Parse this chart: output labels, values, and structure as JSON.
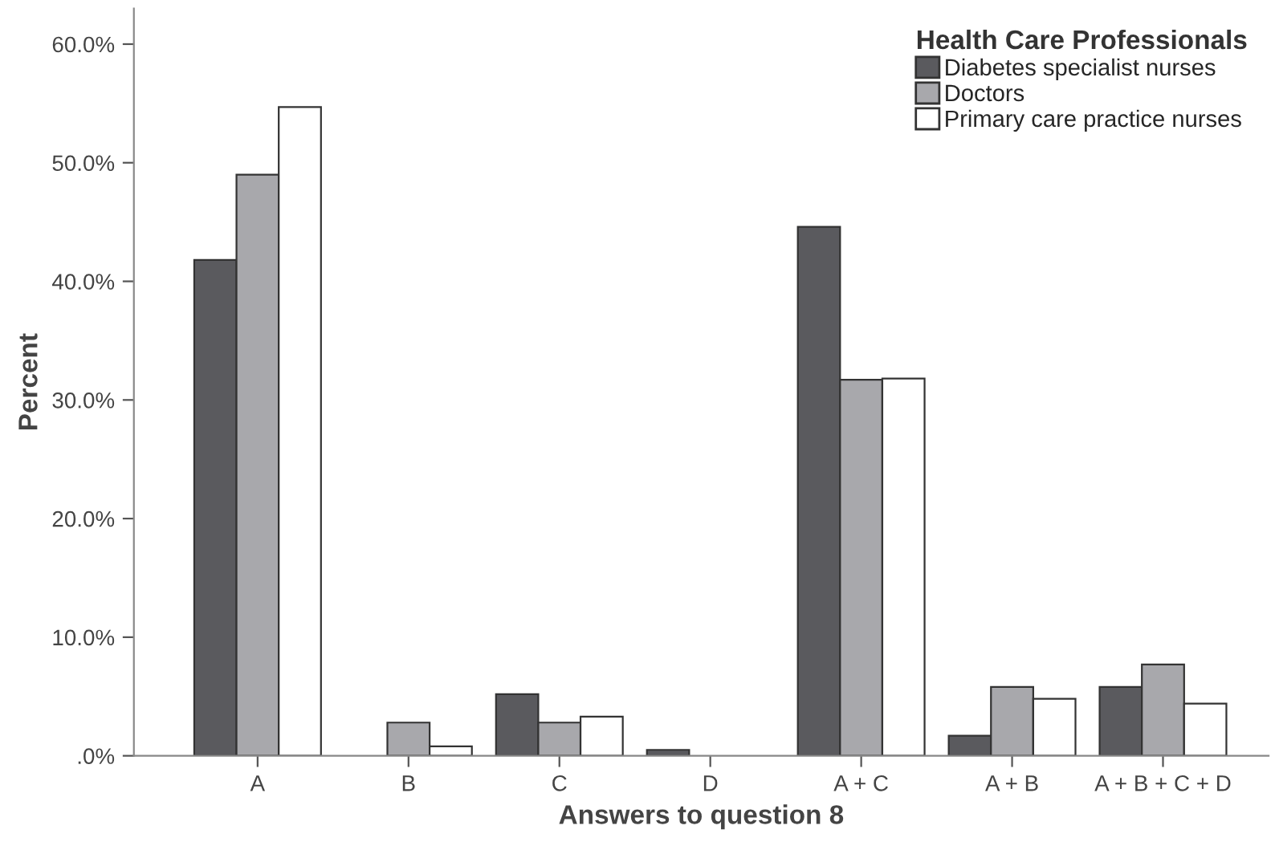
{
  "chart_data": {
    "type": "bar",
    "xlabel": "Answers to question 8",
    "ylabel": "Percent",
    "legend_title": "Health Care Professionals",
    "categories": [
      "A",
      "B",
      "C",
      "D",
      "A + C",
      "A + B",
      "A + B + C + D"
    ],
    "series": [
      {
        "name": "Diabetes specialist nurses",
        "color": "#5a5a5e",
        "values": [
          41.8,
          0,
          5.2,
          0.5,
          44.6,
          1.7,
          5.8
        ]
      },
      {
        "name": "Doctors",
        "color": "#a8a8ac",
        "values": [
          49.0,
          2.8,
          2.8,
          0,
          31.7,
          5.8,
          7.7
        ]
      },
      {
        "name": "Primary care practice nurses",
        "color": "#ffffff",
        "values": [
          54.7,
          0.8,
          3.3,
          0,
          31.8,
          4.8,
          4.4
        ]
      }
    ],
    "ylim": [
      0,
      63
    ],
    "yticks": [
      {
        "value": 0,
        "label": ".0%"
      },
      {
        "value": 10,
        "label": "10.0%"
      },
      {
        "value": 20,
        "label": "20.0%"
      },
      {
        "value": 30,
        "label": "30.0%"
      },
      {
        "value": 40,
        "label": "40.0%"
      },
      {
        "value": 50,
        "label": "50.0%"
      },
      {
        "value": 60,
        "label": "60.0%"
      }
    ],
    "legend": "top right",
    "grid": false
  }
}
